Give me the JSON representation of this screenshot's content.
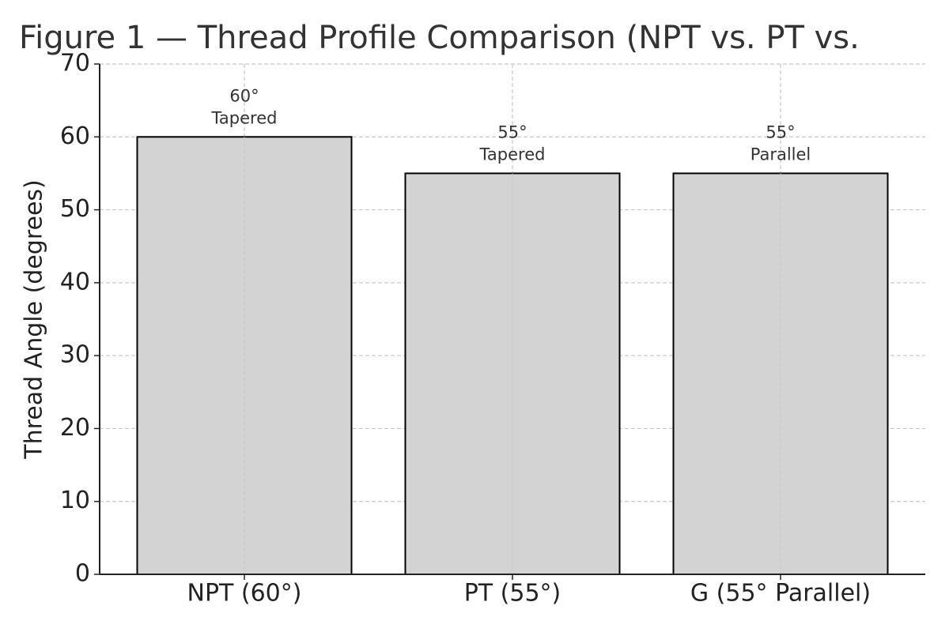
{
  "chart_data": {
    "type": "bar",
    "title": "Figure 1 — Thread Profile Comparison (NPT vs. PT vs.",
    "y_label": "Thread Angle (degrees)",
    "categories": [
      "NPT (60°)",
      "PT (55°)",
      "G (55° Parallel)"
    ],
    "values": [
      60,
      55,
      55
    ],
    "value_labels": [
      "60°",
      "55°",
      "55°"
    ],
    "profile_labels": [
      "Tapered",
      "Tapered",
      "Parallel"
    ],
    "color": "#d3d3d3",
    "edge_color": "#000000",
    "ylim": [
      0,
      70
    ],
    "yticks": [
      0,
      10,
      20,
      30,
      40,
      50,
      60,
      70
    ],
    "grid": true
  }
}
